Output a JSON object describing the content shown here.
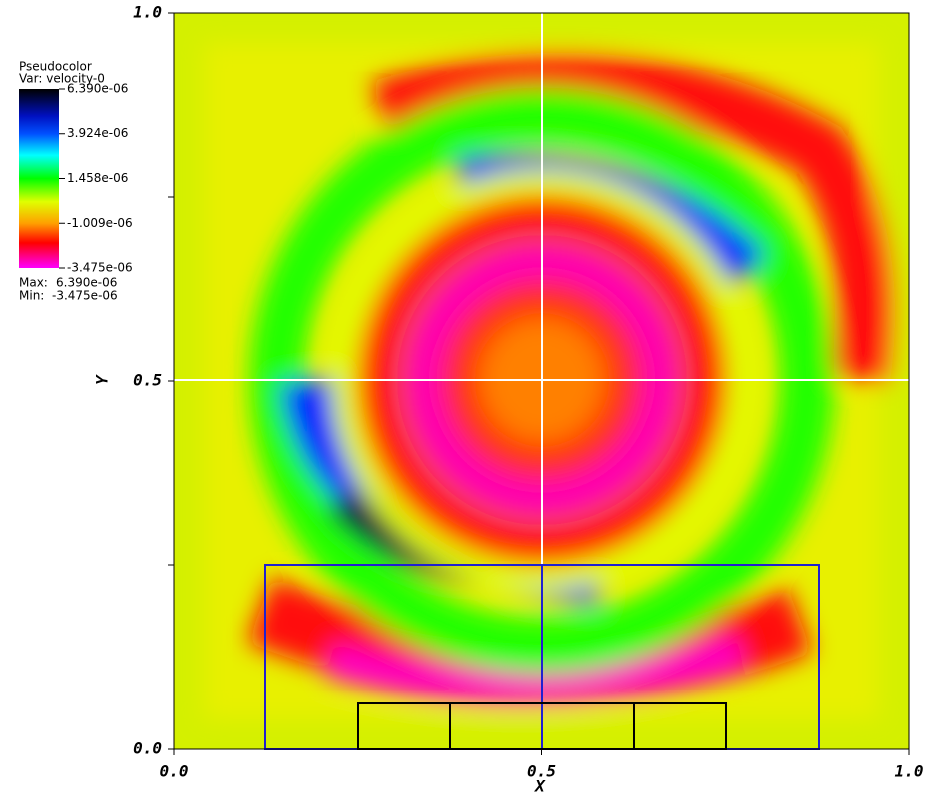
{
  "chart_data": {
    "type": "pseudocolor",
    "title": "Pseudocolor",
    "variable": "Var: velocity-0",
    "xlabel": "X",
    "ylabel": "Y",
    "xlim": [
      0,
      1
    ],
    "ylim": [
      0,
      1
    ],
    "xticks": [
      {
        "value": 0,
        "label": "0.0"
      },
      {
        "value": 0.5,
        "label": "0.5"
      },
      {
        "value": 1,
        "label": "1.0"
      }
    ],
    "yticks": [
      {
        "value": 0,
        "label": "0.0"
      },
      {
        "value": 0.5,
        "label": "0.5"
      },
      {
        "value": 1,
        "label": "1.0"
      }
    ],
    "colorbar_lim": [
      -3.475e-06,
      6.39e-06
    ],
    "colorbar_ticks": [
      {
        "value": 6.39e-06,
        "label": "6.390e-06"
      },
      {
        "value": 3.924e-06,
        "label": "3.924e-06"
      },
      {
        "value": 1.458e-06,
        "label": "1.458e-06"
      },
      {
        "value": -1.009e-06,
        "label": "-1.009e-06"
      },
      {
        "value": -3.475e-06,
        "label": "-3.475e-06"
      }
    ],
    "max_label": "Max:",
    "max": {
      "value": 6.39e-06,
      "label": "6.390e-06"
    },
    "min_label": "Min:",
    "min": {
      "value": -3.475e-06,
      "label": "-3.475e-06"
    }
  }
}
